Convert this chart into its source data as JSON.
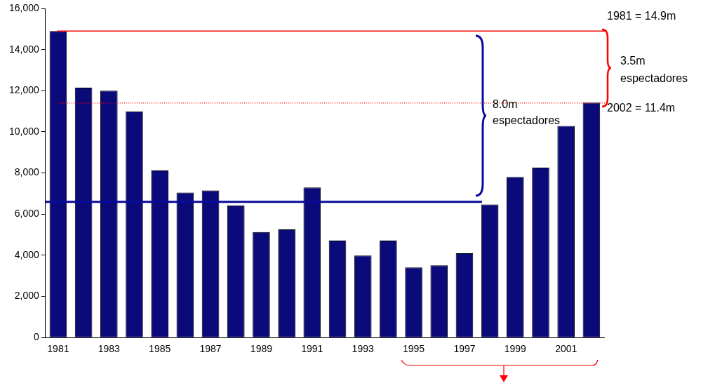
{
  "chart_data": {
    "type": "bar",
    "categories": [
      "1981",
      null,
      "1983",
      null,
      "1985",
      null,
      "1987",
      null,
      "1989",
      null,
      "1991",
      null,
      "1993",
      null,
      "1995",
      null,
      "1997",
      null,
      "1999",
      null,
      "2001",
      null
    ],
    "values": [
      14900,
      12150,
      12000,
      11000,
      8120,
      7050,
      7150,
      6430,
      5130,
      5260,
      7300,
      4710,
      3990,
      4710,
      3410,
      3510,
      4100,
      6470,
      7810,
      8260,
      10290,
      11420
    ],
    "color": "#0a0a7a",
    "ylim": [
      0,
      16000
    ],
    "yticks": [
      {
        "value": 0,
        "label": "0"
      },
      {
        "value": 2000,
        "label": "2,000"
      },
      {
        "value": 4000,
        "label": "4,000"
      },
      {
        "value": 6000,
        "label": "6,000"
      },
      {
        "value": 8000,
        "label": "8,000"
      },
      {
        "value": 10000,
        "label": "10,000"
      },
      {
        "value": 12000,
        "label": "12,000"
      },
      {
        "value": 14000,
        "label": "14,000"
      },
      {
        "value": 16000,
        "label": "16,000"
      }
    ],
    "grid": false,
    "legend": false,
    "ref_lines": [
      {
        "axis": "y",
        "value": 14900,
        "label": "1981 = 14.9m",
        "color": "#ff0000",
        "line_style": "solid"
      },
      {
        "axis": "y",
        "value": 11400,
        "label": "2002 = 11.4m",
        "color": "#ff0000",
        "line_style": "dotted"
      },
      {
        "axis": "y",
        "value": 6600,
        "color": "#0a0a9a",
        "line_style": "solid"
      }
    ],
    "annotations": [
      "3.5m espectadores",
      "8.0m espectadores"
    ]
  }
}
